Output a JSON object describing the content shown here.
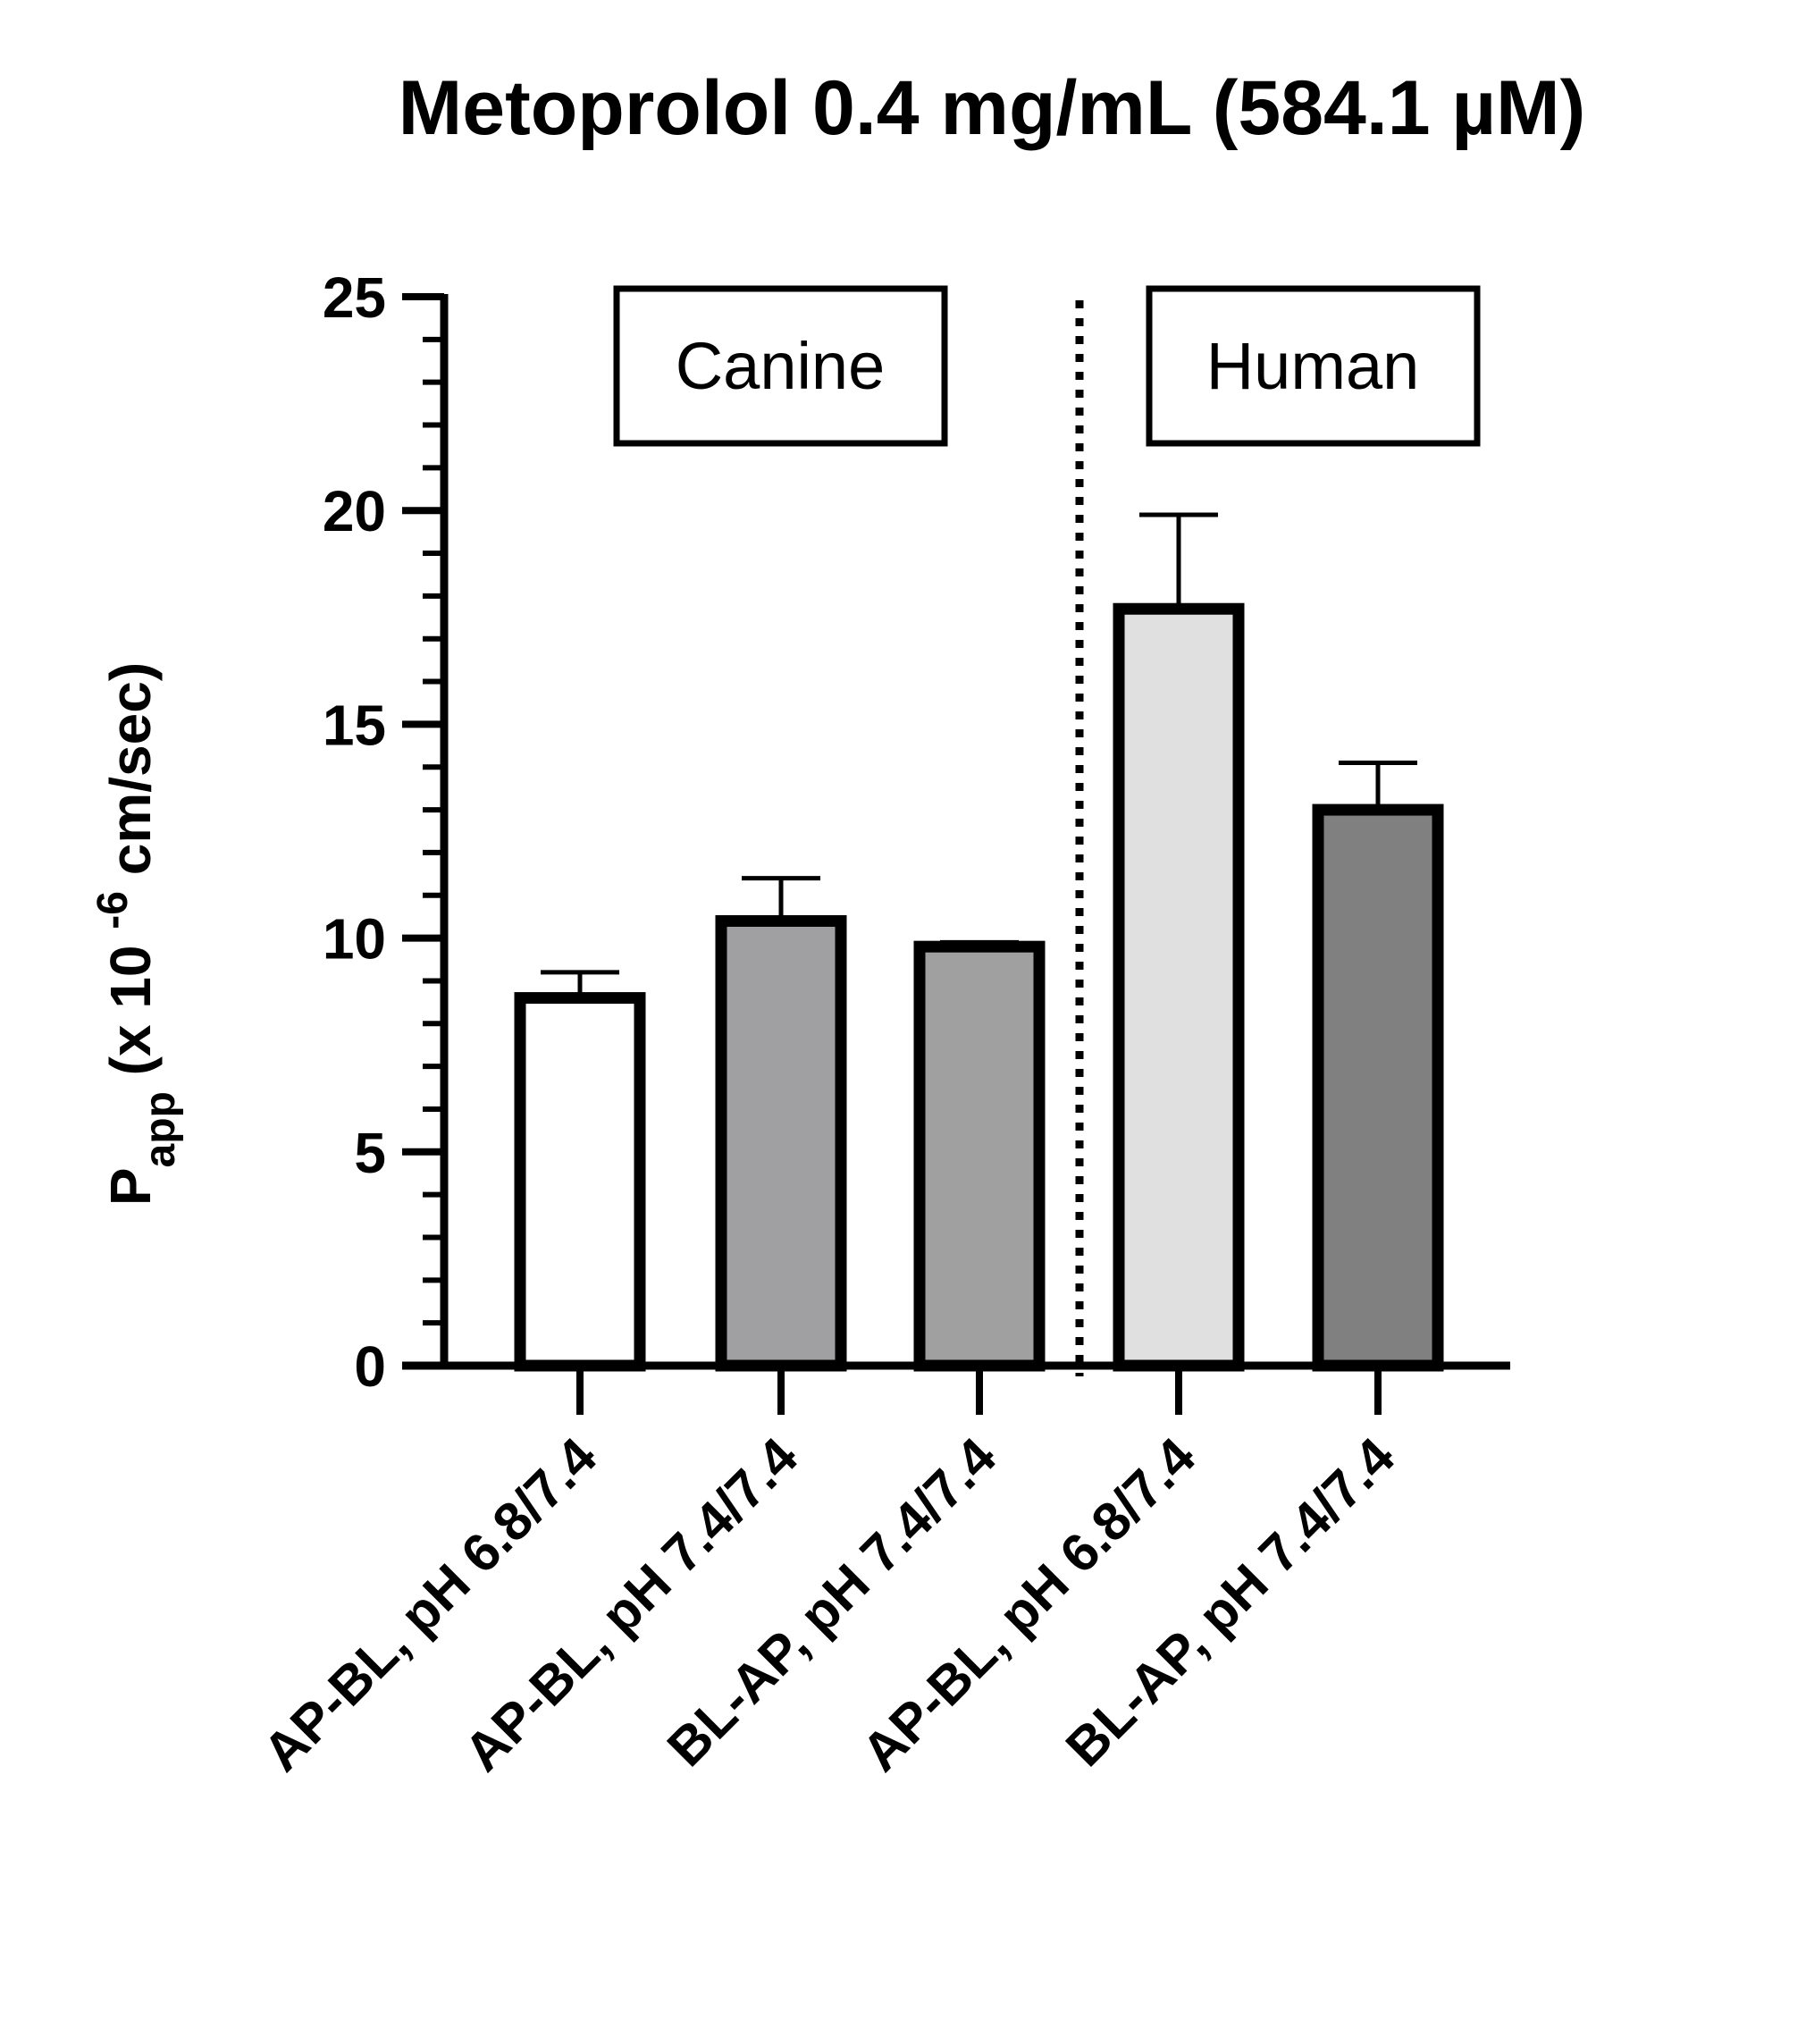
{
  "chart_data": {
    "type": "bar",
    "title": "Metoprolol 0.4 mg/mL (584.1 µM)",
    "ylabel": {
      "main": "P",
      "subscript": "app",
      "rest": " (x 10 ",
      "superscript": "-6",
      "unit": " cm/sec)"
    },
    "xlabel": "",
    "ylim": [
      0,
      25
    ],
    "yticks": [
      "0",
      "5",
      "10",
      "15",
      "20",
      "25"
    ],
    "categories": [
      "AP-BL, pH 6.8/7.4",
      "AP-BL, pH 7.4/7.4",
      "BL-AP, pH 7.4/7.4",
      "AP-BL, pH 6.8/7.4",
      "BL-AP, pH 7.4/7.4"
    ],
    "values": [
      8.6,
      10.4,
      9.8,
      17.7,
      13.0
    ],
    "errors": [
      0.6,
      1.0,
      0.1,
      2.2,
      1.1
    ],
    "colors": [
      "#ffffff",
      "#a0a0a3",
      "#a0a0a0",
      "#e0e0e0",
      "#808080"
    ],
    "groups": [
      {
        "label": "Canine"
      },
      {
        "label": "Human"
      }
    ],
    "grid": false,
    "legend": "none"
  }
}
